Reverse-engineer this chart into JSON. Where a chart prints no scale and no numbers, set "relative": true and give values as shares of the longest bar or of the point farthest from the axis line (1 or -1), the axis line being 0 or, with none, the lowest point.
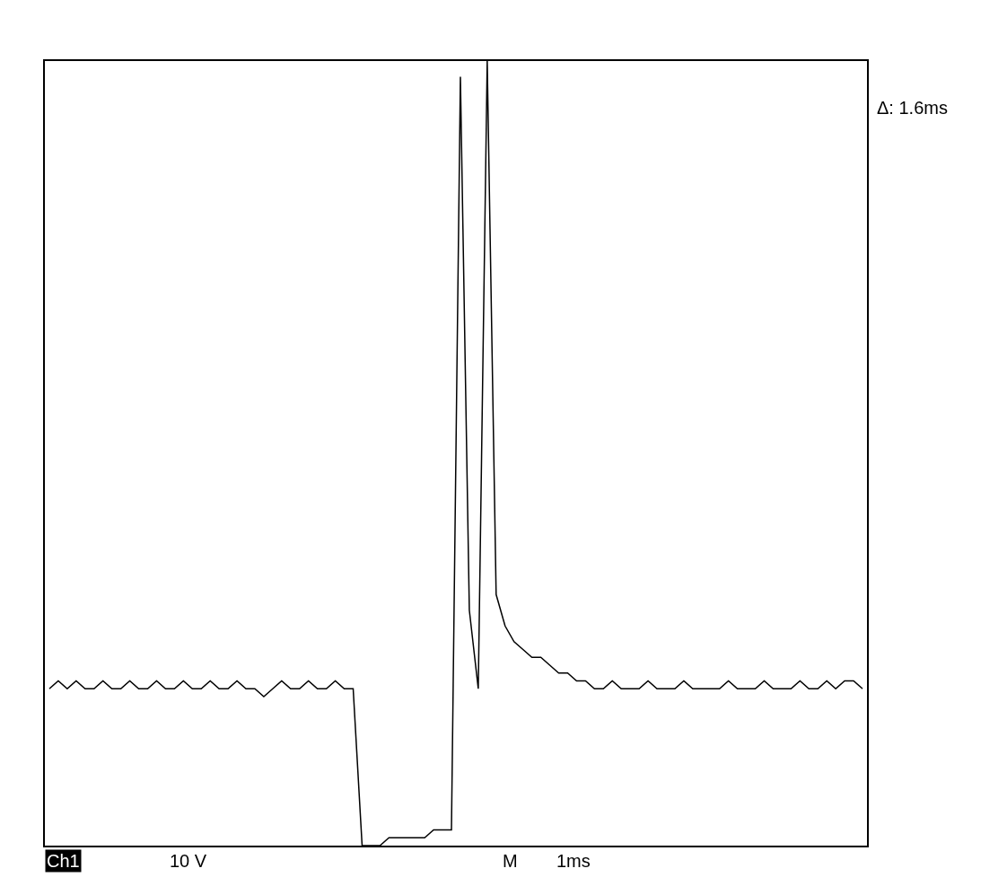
{
  "chart_data": {
    "type": "line",
    "relative": true,
    "categories": [
      null,
      null,
      null,
      null,
      null,
      null,
      null,
      null,
      null,
      null,
      null,
      null,
      null,
      null,
      null,
      null,
      null,
      null,
      null,
      null,
      null,
      null,
      null,
      null,
      null,
      null,
      null,
      null,
      null,
      null,
      null,
      null,
      null,
      null,
      null,
      null,
      null,
      null,
      null,
      null,
      null,
      null,
      null,
      null,
      null,
      null,
      null,
      null,
      null,
      null,
      null,
      null,
      null,
      null,
      null,
      null,
      null,
      null,
      null,
      null,
      null,
      null,
      null,
      null,
      null,
      null,
      null,
      null,
      null,
      null,
      null,
      null,
      null,
      null,
      null,
      null,
      null,
      null,
      null,
      null,
      null,
      null,
      null,
      null,
      null,
      null,
      null,
      null,
      null,
      null,
      null,
      null
    ],
    "series": [
      {
        "color": "#000000",
        "values": [
          0.2,
          0.21,
          0.2,
          0.21,
          0.2,
          0.2,
          0.21,
          0.2,
          0.2,
          0.21,
          0.2,
          0.2,
          0.21,
          0.2,
          0.2,
          0.21,
          0.2,
          0.2,
          0.21,
          0.2,
          0.2,
          0.21,
          0.2,
          0.2,
          0.19,
          0.2,
          0.21,
          0.2,
          0.2,
          0.21,
          0.2,
          0.2,
          0.21,
          0.2,
          0.2,
          0.0,
          0.0,
          0.0,
          0.01,
          0.01,
          0.01,
          0.01,
          0.01,
          0.02,
          0.02,
          0.02,
          0.98,
          0.3,
          0.2,
          1.0,
          0.32,
          0.28,
          0.26,
          0.25,
          0.24,
          0.24,
          0.23,
          0.22,
          0.22,
          0.21,
          0.21,
          0.2,
          0.2,
          0.21,
          0.2,
          0.2,
          0.2,
          0.21,
          0.2,
          0.2,
          0.2,
          0.21,
          0.2,
          0.2,
          0.2,
          0.2,
          0.21,
          0.2,
          0.2,
          0.2,
          0.21,
          0.2,
          0.2,
          0.2,
          0.21,
          0.2,
          0.2,
          0.21,
          0.2,
          0.21,
          0.21,
          0.2
        ]
      }
    ],
    "annotations": [
      "Δ: 1.6ms",
      "Ch1",
      "10 V",
      "M",
      "1ms"
    ],
    "line_style": "solid",
    "marker": "none"
  }
}
